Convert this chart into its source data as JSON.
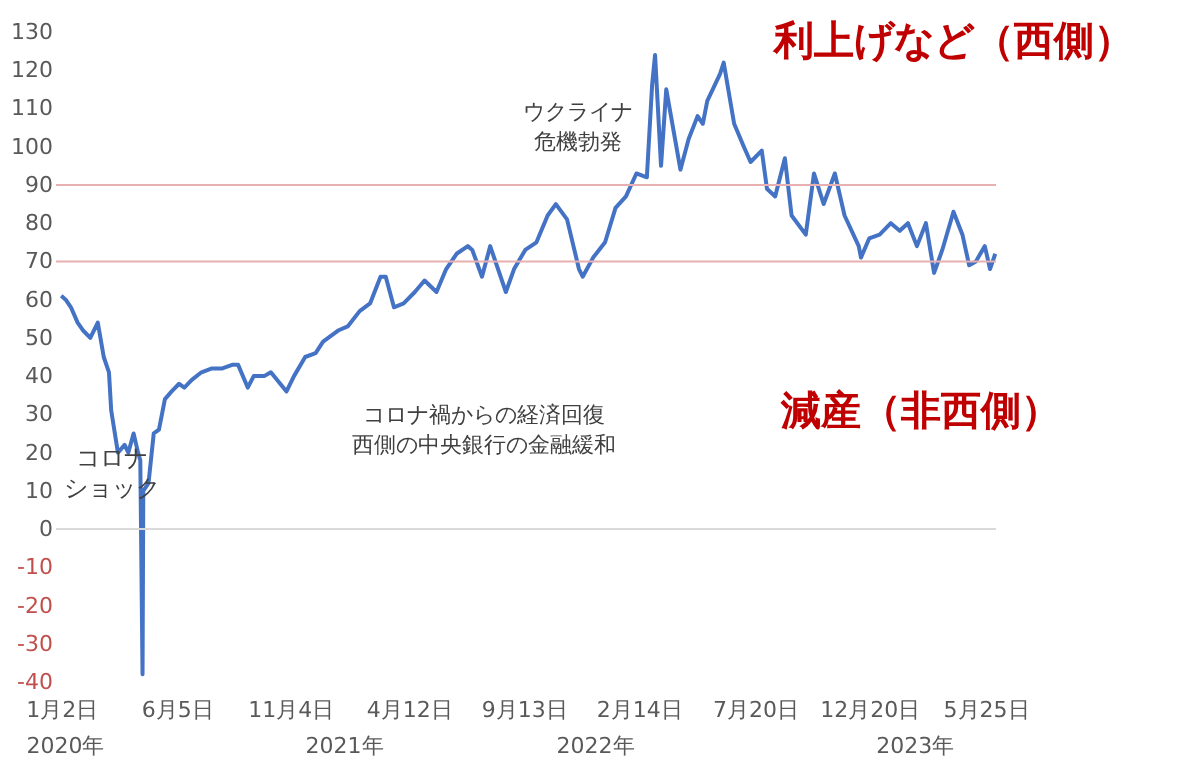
{
  "chart_data": {
    "type": "line",
    "x": [
      "2020-01-02",
      "2020-01-08",
      "2020-01-15",
      "2020-01-24",
      "2020-01-31",
      "2020-02-10",
      "2020-02-20",
      "2020-02-28",
      "2020-03-06",
      "2020-03-09",
      "2020-03-18",
      "2020-03-27",
      "2020-04-01",
      "2020-04-08",
      "2020-04-14",
      "2020-04-17",
      "2020-04-20",
      "2020-04-21",
      "2020-04-28",
      "2020-05-05",
      "2020-05-12",
      "2020-05-20",
      "2020-05-29",
      "2020-06-08",
      "2020-06-15",
      "2020-06-25",
      "2020-07-08",
      "2020-07-22",
      "2020-08-05",
      "2020-08-19",
      "2020-08-26",
      "2020-09-08",
      "2020-09-16",
      "2020-09-30",
      "2020-10-09",
      "2020-10-30",
      "2020-11-09",
      "2020-11-24",
      "2020-12-08",
      "2020-12-18",
      "2021-01-08",
      "2021-01-20",
      "2021-02-05",
      "2021-02-19",
      "2021-03-05",
      "2021-03-12",
      "2021-03-23",
      "2021-04-05",
      "2021-04-20",
      "2021-05-03",
      "2021-05-19",
      "2021-06-01",
      "2021-06-15",
      "2021-06-30",
      "2021-07-06",
      "2021-07-19",
      "2021-07-30",
      "2021-08-20",
      "2021-08-31",
      "2021-09-15",
      "2021-09-30",
      "2021-10-15",
      "2021-10-26",
      "2021-11-10",
      "2021-11-26",
      "2021-12-01",
      "2021-12-15",
      "2021-12-31",
      "2022-01-14",
      "2022-01-28",
      "2022-02-11",
      "2022-02-25",
      "2022-03-04",
      "2022-03-08",
      "2022-03-16",
      "2022-03-23",
      "2022-04-11",
      "2022-04-22",
      "2022-05-04",
      "2022-05-11",
      "2022-05-17",
      "2022-06-03",
      "2022-06-08",
      "2022-06-22",
      "2022-07-05",
      "2022-07-14",
      "2022-07-29",
      "2022-08-05",
      "2022-08-16",
      "2022-08-29",
      "2022-09-07",
      "2022-09-26",
      "2022-10-07",
      "2022-10-20",
      "2022-11-04",
      "2022-11-17",
      "2022-12-06",
      "2022-12-09",
      "2022-12-20",
      "2023-01-03",
      "2023-01-18",
      "2023-01-30",
      "2023-02-10",
      "2023-02-22",
      "2023-03-06",
      "2023-03-17",
      "2023-03-28",
      "2023-04-12",
      "2023-04-24",
      "2023-05-03",
      "2023-05-12",
      "2023-05-24",
      "2023-05-31",
      "2023-06-07"
    ],
    "series": [
      {
        "color": "#4472c4",
        "values": [
          61,
          60,
          58,
          54,
          52,
          50,
          54,
          45,
          41,
          31,
          20,
          22,
          20,
          25,
          20,
          18,
          -38,
          10,
          12,
          25,
          26,
          34,
          36,
          38,
          37,
          39,
          41,
          42,
          42,
          43,
          43,
          37,
          40,
          40,
          41,
          36,
          40,
          45,
          46,
          49,
          52,
          53,
          57,
          59,
          66,
          66,
          58,
          59,
          62,
          65,
          62,
          68,
          72,
          74,
          73,
          66,
          74,
          62,
          68,
          73,
          75,
          82,
          85,
          81,
          68,
          66,
          71,
          75,
          84,
          87,
          93,
          92,
          116,
          124,
          95,
          115,
          94,
          102,
          108,
          106,
          112,
          119,
          122,
          106,
          100,
          96,
          99,
          89,
          87,
          97,
          82,
          77,
          93,
          85,
          93,
          82,
          74,
          71,
          76,
          77,
          80,
          78,
          80,
          74,
          80,
          67,
          73,
          83,
          77,
          69,
          70,
          74,
          68,
          72
        ]
      }
    ],
    "xlim": [
      "2019-12-26",
      "2023-06-08"
    ],
    "xticks": [
      {
        "value": "2020-01-02",
        "label": "1月2日"
      },
      {
        "value": "2020-06-05",
        "label": "6月5日"
      },
      {
        "value": "2020-11-04",
        "label": "11月4日"
      },
      {
        "value": "2021-04-12",
        "label": "4月12日"
      },
      {
        "value": "2021-09-13",
        "label": "9月13日"
      },
      {
        "value": "2022-02-14",
        "label": "2月14日"
      },
      {
        "value": "2022-07-20",
        "label": "7月20日"
      },
      {
        "value": "2022-12-20",
        "label": "12月20日"
      },
      {
        "value": "2023-05-25",
        "label": "5月25日"
      }
    ],
    "ylim": [
      -40,
      130
    ],
    "yticks": [
      -40,
      -30,
      -20,
      -10,
      0,
      10,
      20,
      30,
      40,
      50,
      60,
      70,
      80,
      90,
      100,
      110,
      120,
      130
    ],
    "grid": false,
    "ref_lines": [
      {
        "axis": "y",
        "value": 90,
        "color": "#e8b0b0"
      },
      {
        "axis": "y",
        "value": 70,
        "color": "#e8b0b0"
      },
      {
        "axis": "y",
        "value": 0,
        "color": "#d9d9d9"
      }
    ],
    "annotations": [
      "コロナショック",
      "ウクライナ危機勃発",
      "コロナ禍からの経済回復西側の中央銀行の金融緩和",
      "利上げなど（西側）",
      "減産（非西側）",
      "2020年",
      "2021年",
      "2022年",
      "2023年"
    ]
  }
}
